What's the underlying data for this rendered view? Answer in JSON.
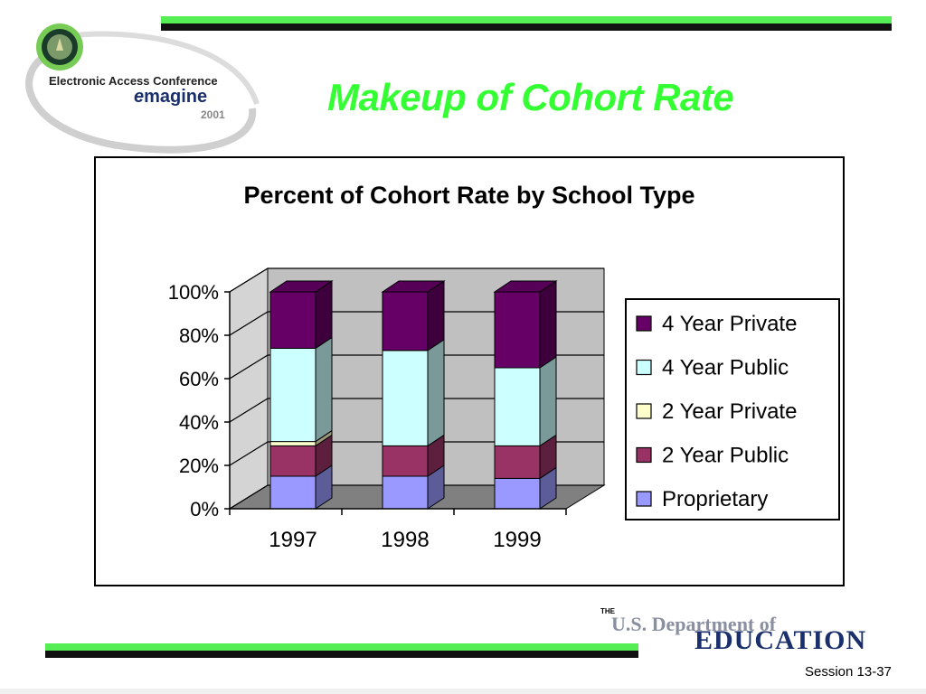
{
  "slide": {
    "title": "Makeup of Cohort Rate",
    "session": "Session 13-37"
  },
  "logo": {
    "line1": "Electronic Access Conference",
    "line2_e": "e",
    "line2_rest": "magine",
    "line3": "2001"
  },
  "department": {
    "the": "THE",
    "name": "U.S. Department of",
    "education": "EDUCATION"
  },
  "colors": {
    "accent_green": "#33ff33",
    "proprietary": "#9999ff",
    "two_year_public": "#993366",
    "two_year_private": "#ffffcc",
    "four_year_public": "#ccffff",
    "four_year_private": "#660066"
  },
  "chart_data": {
    "type": "bar",
    "stacked": true,
    "three_d": true,
    "title": "Percent of Cohort Rate by School Type",
    "categories": [
      "1997",
      "1998",
      "1999"
    ],
    "y_ticks": [
      "0%",
      "20%",
      "40%",
      "60%",
      "80%",
      "100%"
    ],
    "ylim": [
      0,
      100
    ],
    "grid": true,
    "legend_position": "right",
    "series": [
      {
        "name": "Proprietary",
        "values": [
          15,
          15,
          14
        ],
        "color": "#9999ff"
      },
      {
        "name": "2 Year Public",
        "values": [
          14,
          14,
          15
        ],
        "color": "#993366"
      },
      {
        "name": "2 Year Private",
        "values": [
          2,
          0,
          0
        ],
        "color": "#ffffcc"
      },
      {
        "name": "4 Year Public",
        "values": [
          43,
          44,
          36
        ],
        "color": "#ccffff"
      },
      {
        "name": "4 Year Private",
        "values": [
          26,
          27,
          35
        ],
        "color": "#660066"
      }
    ],
    "legend_order": [
      "4 Year Private",
      "4 Year Public",
      "2 Year Private",
      "2 Year Public",
      "Proprietary"
    ]
  }
}
